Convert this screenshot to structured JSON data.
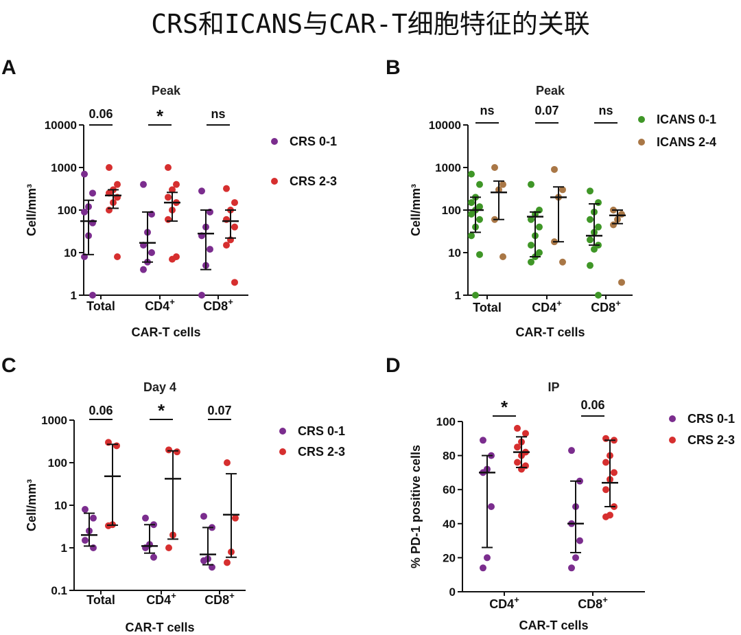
{
  "title": "CRS和ICANS与CAR-T细胞特征的关联",
  "chart_data": [
    {
      "id": "A",
      "panel_label": "A",
      "type": "scatter",
      "scale": "log",
      "title": "Peak",
      "xlabel": "CAR-T cells",
      "ylabel": "Cell/mm³",
      "ylim": [
        1,
        10000
      ],
      "yticks": [
        {
          "v": 1,
          "label": "1"
        },
        {
          "v": 10,
          "label": "10"
        },
        {
          "v": 100,
          "label": "100"
        },
        {
          "v": 1000,
          "label": "1000"
        },
        {
          "v": 10000,
          "label": "10000"
        }
      ],
      "categories": [
        "Total",
        "CD4",
        "CD8"
      ],
      "cat_sup": [
        "",
        "+",
        "+"
      ],
      "series": [
        {
          "name": "CRS 0-1",
          "color": "#7b2d8e",
          "points": [
            [
              700,
              250,
              120,
              90,
              50,
              25,
              8,
              1
            ],
            [
              400,
              80,
              30,
              15,
              10,
              6,
              4
            ],
            [
              280,
              90,
              40,
              25,
              12,
              5,
              1
            ]
          ],
          "median": [
            55,
            17,
            28
          ],
          "lower": [
            9,
            6,
            4
          ],
          "upper": [
            170,
            90,
            100
          ]
        },
        {
          "name": "CRS 2-3",
          "color": "#d62f2f",
          "points": [
            [
              1000,
              400,
              300,
              250,
              200,
              150,
              100,
              8
            ],
            [
              1000,
              400,
              300,
              200,
              150,
              100,
              60,
              8,
              7
            ],
            [
              320,
              150,
              100,
              60,
              40,
              20,
              15,
              2
            ]
          ],
          "median": [
            220,
            150,
            55
          ],
          "lower": [
            110,
            55,
            22
          ],
          "upper": [
            300,
            260,
            100
          ]
        }
      ],
      "significance": [
        "0.06",
        "*",
        "ns"
      ]
    },
    {
      "id": "B",
      "panel_label": "B",
      "type": "scatter",
      "scale": "log",
      "title": "Peak",
      "xlabel": "CAR-T cells",
      "ylabel": "Cell/mm³",
      "ylim": [
        1,
        10000
      ],
      "yticks": [
        {
          "v": 1,
          "label": "1"
        },
        {
          "v": 10,
          "label": "10"
        },
        {
          "v": 100,
          "label": "100"
        },
        {
          "v": 1000,
          "label": "1000"
        },
        {
          "v": 10000,
          "label": "10000"
        }
      ],
      "categories": [
        "Total",
        "CD4",
        "CD8"
      ],
      "cat_sup": [
        "",
        "+",
        "+"
      ],
      "series": [
        {
          "name": "ICANS 0-1",
          "color": "#3f9627",
          "points": [
            [
              700,
              400,
              200,
              150,
              120,
              100,
              80,
              60,
              40,
              25,
              9,
              1
            ],
            [
              400,
              100,
              80,
              60,
              40,
              25,
              15,
              10,
              8,
              6
            ],
            [
              280,
              150,
              90,
              60,
              40,
              30,
              20,
              15,
              12,
              5,
              1
            ]
          ],
          "median": [
            100,
            70,
            25
          ],
          "lower": [
            30,
            8,
            15
          ],
          "upper": [
            200,
            90,
            140
          ]
        },
        {
          "name": "ICANS 2-4",
          "color": "#a97746",
          "points": [
            [
              1000,
              400,
              300,
              60,
              8
            ],
            [
              900,
              300,
              200,
              18,
              6
            ],
            [
              100,
              80,
              60,
              45,
              2
            ]
          ],
          "median": [
            260,
            200,
            75
          ],
          "lower": [
            60,
            18,
            48
          ],
          "upper": [
            480,
            350,
            100
          ]
        }
      ],
      "significance": [
        "ns",
        "0.07",
        "ns"
      ]
    },
    {
      "id": "C",
      "panel_label": "C",
      "type": "scatter",
      "scale": "log",
      "title": "Day 4",
      "xlabel": "CAR-T cells",
      "ylabel": "Cell/mm³",
      "ylim": [
        0.1,
        1000
      ],
      "yticks": [
        {
          "v": 0.1,
          "label": "0.1"
        },
        {
          "v": 1,
          "label": "1"
        },
        {
          "v": 10,
          "label": "10"
        },
        {
          "v": 100,
          "label": "100"
        },
        {
          "v": 1000,
          "label": "1000"
        }
      ],
      "categories": [
        "Total",
        "CD4",
        "CD8"
      ],
      "cat_sup": [
        "",
        "+",
        "+"
      ],
      "series": [
        {
          "name": "CRS 0-1",
          "color": "#7b2d8e",
          "points": [
            [
              8,
              5,
              2.5,
              1.5,
              1
            ],
            [
              5,
              3.5,
              1.2,
              1,
              0.6
            ],
            [
              5.5,
              3,
              0.55,
              0.5,
              0.35
            ]
          ],
          "median": [
            2,
            1.1,
            0.7
          ],
          "lower": [
            1.1,
            0.75,
            0.4
          ],
          "upper": [
            6.5,
            3.5,
            3
          ]
        },
        {
          "name": "CRS 2-3",
          "color": "#d62f2f",
          "points": [
            [
              300,
              250,
              3.5,
              3.3
            ],
            [
              200,
              180,
              2,
              1
            ],
            [
              100,
              5,
              0.8,
              0.45
            ]
          ],
          "median": [
            48,
            42,
            6
          ],
          "lower": [
            3.4,
            1.6,
            0.6
          ],
          "upper": [
            270,
            190,
            55
          ]
        }
      ],
      "significance": [
        "0.06",
        "*",
        "0.07"
      ]
    },
    {
      "id": "D",
      "panel_label": "D",
      "type": "scatter",
      "scale": "linear",
      "title": "IP",
      "xlabel": "CAR-T cells",
      "ylabel": "% PD-1 positive cells",
      "ylim": [
        0,
        100
      ],
      "yticks": [
        {
          "v": 0,
          "label": "0"
        },
        {
          "v": 20,
          "label": "20"
        },
        {
          "v": 40,
          "label": "40"
        },
        {
          "v": 60,
          "label": "60"
        },
        {
          "v": 80,
          "label": "80"
        },
        {
          "v": 100,
          "label": "100"
        }
      ],
      "categories": [
        "CD4",
        "CD8"
      ],
      "cat_sup": [
        "+",
        "+"
      ],
      "series": [
        {
          "name": "CRS 0-1",
          "color": "#7b2d8e",
          "points": [
            [
              89,
              80,
              72,
              70,
              50,
              20,
              14
            ],
            [
              83,
              65,
              50,
              40,
              30,
              20,
              14
            ]
          ],
          "median": [
            70,
            40
          ],
          "lower": [
            26,
            23
          ],
          "upper": [
            80,
            65
          ]
        },
        {
          "name": "CRS 2-3",
          "color": "#d62f2f",
          "points": [
            [
              96,
              93,
              88,
              85,
              82,
              80,
              76,
              74,
              72
            ],
            [
              90,
              89,
              80,
              76,
              70,
              66,
              60,
              50,
              45,
              44
            ]
          ],
          "median": [
            82,
            64
          ],
          "lower": [
            73,
            50
          ],
          "upper": [
            91,
            89
          ]
        }
      ],
      "significance": [
        "*",
        "0.06"
      ]
    }
  ]
}
